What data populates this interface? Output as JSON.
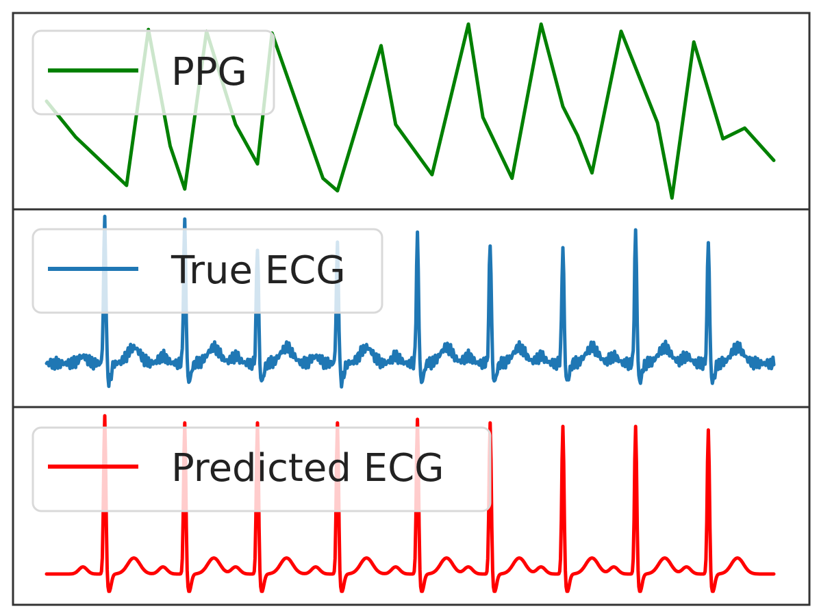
{
  "chart_data": [
    {
      "type": "line",
      "legend": "PPG",
      "legend_placement": "upper-left",
      "color": "#008000",
      "grid": false,
      "x": [
        0,
        0.04,
        0.11,
        0.14,
        0.17,
        0.19,
        0.22,
        0.26,
        0.29,
        0.31,
        0.38,
        0.4,
        0.46,
        0.48,
        0.53,
        0.58,
        0.6,
        0.64,
        0.68,
        0.71,
        0.73,
        0.75,
        0.79,
        0.84,
        0.86,
        0.89,
        0.93,
        0.96,
        1.0
      ],
      "values": [
        0.55,
        0.35,
        0.08,
        0.95,
        0.3,
        0.06,
        0.94,
        0.42,
        0.2,
        0.93,
        0.12,
        0.05,
        0.86,
        0.42,
        0.14,
        0.98,
        0.46,
        0.12,
        0.98,
        0.52,
        0.36,
        0.15,
        0.94,
        0.43,
        0.01,
        0.88,
        0.34,
        0.4,
        0.22
      ]
    },
    {
      "type": "line",
      "legend": "True ECG",
      "legend_placement": "upper-left",
      "color": "#1f77b4",
      "grid": false,
      "peaks_x": [
        0.08,
        0.19,
        0.29,
        0.4,
        0.51,
        0.61,
        0.71,
        0.81,
        0.91
      ],
      "peaks_height": [
        1.0,
        0.98,
        0.85,
        0.85,
        0.9,
        0.87,
        0.84,
        0.93,
        0.88
      ],
      "baseline": 0.18
    },
    {
      "type": "line",
      "legend": "Predicted ECG",
      "legend_placement": "upper-left",
      "color": "#ff0000",
      "grid": false,
      "peaks_x": [
        0.08,
        0.19,
        0.29,
        0.4,
        0.51,
        0.61,
        0.71,
        0.81,
        0.91
      ],
      "peaks_height": [
        1.0,
        0.96,
        0.96,
        0.96,
        0.98,
        0.96,
        0.94,
        0.94,
        0.92
      ],
      "baseline": 0.1
    }
  ]
}
